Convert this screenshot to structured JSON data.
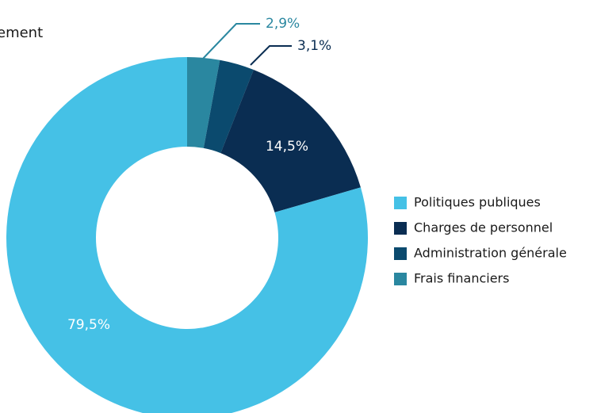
{
  "chart_data": {
    "type": "donut",
    "title": "ement",
    "categories": [
      "Politiques publiques",
      "Charges de personnel",
      "Administration générale",
      "Frais financiers"
    ],
    "values": [
      79.5,
      14.5,
      3.1,
      2.9
    ],
    "value_labels": [
      "79,5%",
      "14,5%",
      "3,1%",
      "2,9%"
    ],
    "colors": [
      "#45c1e6",
      "#0a2d52",
      "#0b4a6e",
      "#2a87a0"
    ],
    "legend": "right"
  }
}
